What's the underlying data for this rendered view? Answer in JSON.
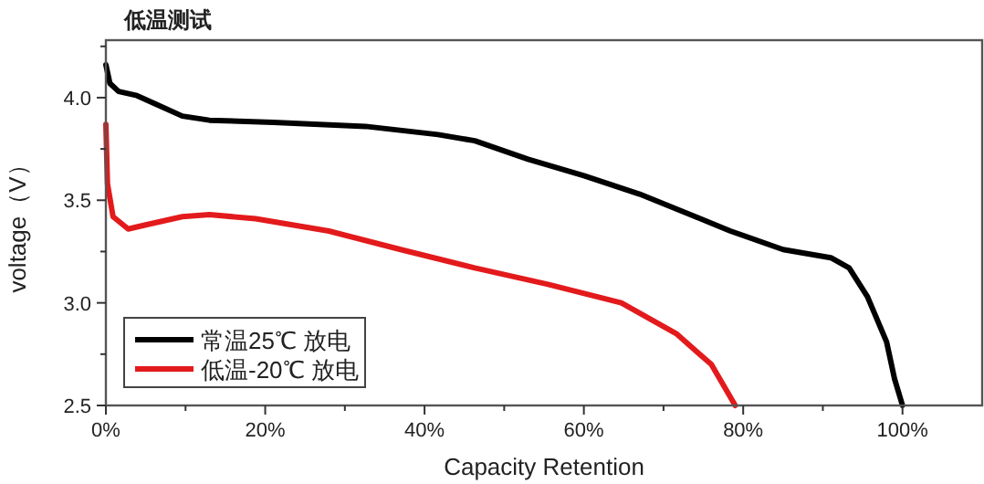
{
  "chart_data": {
    "type": "line",
    "title": "低温测试",
    "xlabel": "Capacity Retention",
    "ylabel": "voltage（V）",
    "xlim": [
      0,
      110
    ],
    "ylim": [
      2.5,
      4.28
    ],
    "xticks": [
      {
        "value": 0,
        "label": "0%"
      },
      {
        "value": 10,
        "label": null
      },
      {
        "value": 20,
        "label": "20%"
      },
      {
        "value": 30,
        "label": null
      },
      {
        "value": 40,
        "label": "40%"
      },
      {
        "value": 50,
        "label": null
      },
      {
        "value": 60,
        "label": "60%"
      },
      {
        "value": 70,
        "label": null
      },
      {
        "value": 80,
        "label": "80%"
      },
      {
        "value": 90,
        "label": null
      },
      {
        "value": 100,
        "label": "100%"
      }
    ],
    "yticks": [
      {
        "value": 2.5,
        "label": "2.5"
      },
      {
        "value": 2.75,
        "label": null
      },
      {
        "value": 3.0,
        "label": "3.0"
      },
      {
        "value": 3.25,
        "label": null
      },
      {
        "value": 3.5,
        "label": "3.5"
      },
      {
        "value": 3.75,
        "label": null
      },
      {
        "value": 4.0,
        "label": "4.0"
      },
      {
        "value": 4.25,
        "label": null
      }
    ],
    "grid": false,
    "legend": "bottom left",
    "marker": "none",
    "line_style": "solid",
    "series": [
      {
        "name": "常温25℃ 放电",
        "color": "#000000",
        "x": [
          0,
          0.5,
          1.6,
          3.9,
          6.2,
          9.6,
          13,
          21,
          32.6,
          41.7,
          46.3,
          53,
          60,
          67,
          74,
          78.4,
          85,
          91,
          93.3,
          95.6,
          98,
          99,
          100
        ],
        "values": [
          4.16,
          4.07,
          4.03,
          4.01,
          3.97,
          3.91,
          3.89,
          3.88,
          3.86,
          3.82,
          3.79,
          3.7,
          3.62,
          3.53,
          3.42,
          3.35,
          3.26,
          3.22,
          3.17,
          3.03,
          2.81,
          2.63,
          2.5
        ]
      },
      {
        "name": "低温-20℃ 放电",
        "color": "#e31a1c",
        "x": [
          0,
          0.2,
          0.9,
          2.8,
          5,
          9.6,
          13,
          18.8,
          28,
          37,
          46.3,
          55.5,
          64.7,
          71.6,
          76,
          79
        ],
        "values": [
          3.87,
          3.58,
          3.42,
          3.36,
          3.38,
          3.42,
          3.43,
          3.41,
          3.35,
          3.26,
          3.17,
          3.09,
          3.0,
          2.85,
          2.7,
          2.5
        ]
      }
    ]
  }
}
